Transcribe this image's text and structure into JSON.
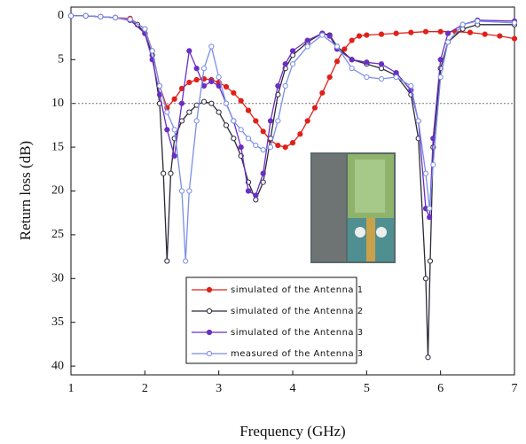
{
  "chart_data": {
    "type": "line",
    "x_label": "Frequency (GHz)",
    "y_label": "Return loss (dB)",
    "xlim": [
      1,
      7
    ],
    "xticks": [
      1,
      2,
      3,
      4,
      5,
      6,
      7
    ],
    "ylim": [
      -1,
      41
    ],
    "y_inverted": true,
    "yticks": [
      0,
      5,
      10,
      15,
      20,
      25,
      30,
      35,
      40
    ],
    "reference_line": 10,
    "series": [
      {
        "name": "simulated of the Antenna 1",
        "color": "#e0201b",
        "marker": "filled",
        "x": [
          1.0,
          1.2,
          1.4,
          1.6,
          1.8,
          2.0,
          2.1,
          2.2,
          2.3,
          2.4,
          2.5,
          2.6,
          2.7,
          2.8,
          2.9,
          3.0,
          3.1,
          3.2,
          3.3,
          3.4,
          3.5,
          3.6,
          3.7,
          3.8,
          3.9,
          4.0,
          4.1,
          4.2,
          4.3,
          4.4,
          4.5,
          4.6,
          4.7,
          4.8,
          4.9,
          5.0,
          5.2,
          5.4,
          5.6,
          5.8,
          6.0,
          6.2,
          6.4,
          6.6,
          6.8,
          7.0
        ],
        "values": [
          0,
          0,
          0.1,
          0.2,
          0.3,
          1.5,
          4,
          8,
          10.5,
          9.5,
          8.3,
          7.6,
          7.3,
          7.2,
          7.3,
          7.6,
          8.1,
          8.8,
          9.7,
          10.8,
          12,
          13.2,
          14.2,
          14.8,
          15,
          14.5,
          13.5,
          12,
          10.5,
          8.8,
          7,
          5.2,
          3.8,
          2.8,
          2.3,
          2.2,
          2.1,
          2.0,
          1.9,
          1.8,
          1.8,
          1.8,
          1.9,
          2.1,
          2.3,
          2.6
        ]
      },
      {
        "name": "simulated of the Antenna 2",
        "color": "#2a2a3a",
        "marker": "open",
        "x": [
          1.0,
          1.2,
          1.4,
          1.6,
          1.8,
          1.9,
          2.0,
          2.1,
          2.2,
          2.25,
          2.3,
          2.35,
          2.4,
          2.5,
          2.6,
          2.7,
          2.8,
          2.9,
          3.0,
          3.1,
          3.2,
          3.3,
          3.4,
          3.5,
          3.6,
          3.7,
          3.8,
          3.9,
          4.0,
          4.2,
          4.4,
          4.5,
          4.6,
          4.8,
          5.0,
          5.2,
          5.4,
          5.6,
          5.7,
          5.8,
          5.83,
          5.86,
          5.9,
          6.0,
          6.1,
          6.3,
          6.5,
          7.0
        ],
        "values": [
          0,
          0,
          0.1,
          0.2,
          0.5,
          1.0,
          2.0,
          4.5,
          10,
          18,
          28,
          18,
          14,
          12,
          11,
          10.2,
          9.8,
          10,
          11,
          12.5,
          14,
          16,
          19,
          21,
          19,
          14,
          9,
          6,
          4.5,
          3,
          2,
          2.2,
          3.5,
          5,
          5.5,
          6,
          6.8,
          9,
          14,
          30,
          39,
          28,
          15,
          6,
          3,
          1.5,
          1,
          1
        ]
      },
      {
        "name": "simulated of the Antenna 3",
        "color": "#6a2fc4",
        "marker": "filled",
        "x": [
          1.0,
          1.2,
          1.4,
          1.6,
          1.8,
          2.0,
          2.1,
          2.2,
          2.3,
          2.4,
          2.5,
          2.6,
          2.7,
          2.8,
          2.9,
          3.0,
          3.1,
          3.2,
          3.3,
          3.4,
          3.5,
          3.6,
          3.7,
          3.8,
          3.9,
          4.0,
          4.2,
          4.4,
          4.5,
          4.6,
          4.8,
          5.0,
          5.2,
          5.4,
          5.6,
          5.7,
          5.8,
          5.85,
          5.9,
          6.0,
          6.1,
          6.3,
          6.5,
          7.0
        ],
        "values": [
          0,
          0,
          0.1,
          0.2,
          0.5,
          2,
          5,
          9,
          13,
          16,
          10,
          4,
          6,
          8,
          7.5,
          8,
          10,
          12,
          15,
          20,
          20.5,
          18,
          12,
          8,
          5.5,
          4,
          2.8,
          2,
          2.3,
          3.8,
          5,
          5.3,
          5.5,
          6.5,
          8.5,
          12,
          22,
          23,
          14,
          5,
          2,
          1,
          0.5,
          0.6
        ]
      },
      {
        "name": "measured of the Antenna 3",
        "color": "#7a8ee8",
        "marker": "open",
        "x": [
          1.0,
          1.2,
          1.4,
          1.6,
          1.8,
          2.0,
          2.1,
          2.2,
          2.3,
          2.4,
          2.5,
          2.55,
          2.6,
          2.7,
          2.8,
          2.9,
          3.0,
          3.1,
          3.2,
          3.3,
          3.4,
          3.5,
          3.6,
          3.7,
          3.8,
          3.9,
          4.0,
          4.2,
          4.4,
          4.6,
          4.8,
          5.0,
          5.2,
          5.4,
          5.6,
          5.7,
          5.8,
          5.85,
          5.9,
          6.0,
          6.1,
          6.3,
          6.5,
          7.0
        ],
        "values": [
          0,
          0,
          0.1,
          0.2,
          0.4,
          1.5,
          4,
          8,
          11,
          13,
          20,
          28,
          20,
          12,
          6,
          3.5,
          7,
          10,
          12,
          13,
          14,
          14.8,
          15.3,
          15,
          12,
          8,
          5.5,
          3.5,
          2.2,
          3.5,
          6,
          7,
          7.2,
          7,
          8,
          12,
          18,
          22,
          17,
          7,
          3,
          1,
          0.6,
          0.8
        ]
      }
    ]
  }
}
